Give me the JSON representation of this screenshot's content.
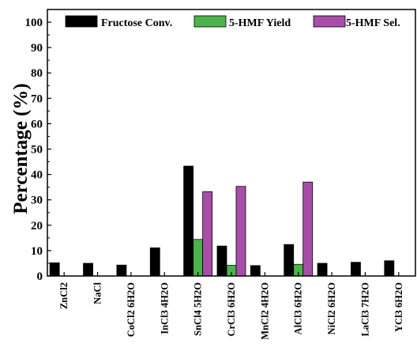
{
  "chart_data": {
    "type": "bar",
    "title": "",
    "xlabel": "",
    "ylabel": "Percentage (%)",
    "ylim": [
      0,
      105
    ],
    "yticks": [
      0,
      10,
      20,
      30,
      40,
      50,
      60,
      70,
      80,
      90,
      100
    ],
    "grid": false,
    "legend_position": "top",
    "categories": [
      "ZnCl2",
      "NaCl",
      "CoCl2 6H2O",
      "InCl3 4H2O",
      "SnCl4 5H2O",
      "CrCl3 6H2O",
      "MnCl2 4H2O",
      "AlCl3 6H2O",
      "NiCl2 6H2O",
      "LaCl3 7H2O",
      "YCl3 6H2O"
    ],
    "series": [
      {
        "name": "Fructose Conv.",
        "color": "#000000",
        "values": [
          5.2,
          5.0,
          4.3,
          11.1,
          43.3,
          11.8,
          4.1,
          12.4,
          5.0,
          5.4,
          6.0
        ]
      },
      {
        "name": "5-HMF Yield",
        "color": "#4cb34c",
        "values": [
          0,
          0,
          0,
          0,
          14.4,
          4.2,
          0,
          4.6,
          0,
          0,
          0
        ]
      },
      {
        "name": "5-HMF Sel.",
        "color": "#a84ea8",
        "values": [
          0,
          0,
          0,
          0,
          33.2,
          35.3,
          0,
          37.0,
          0,
          0,
          0
        ]
      }
    ]
  }
}
